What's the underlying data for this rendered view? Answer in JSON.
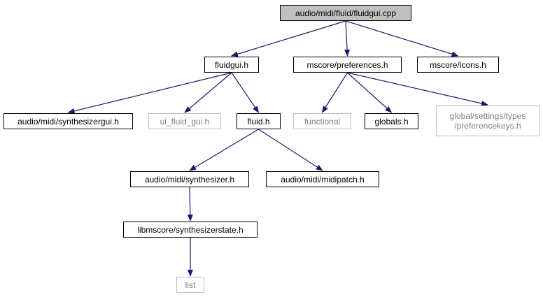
{
  "diagram": {
    "type": "include-dependency-graph",
    "colors": {
      "edge": "#191970",
      "node_border": "#000000",
      "external_border": "#bfbfbf",
      "external_text": "#7f7f7f",
      "root_fill": "#bfbfbf"
    },
    "nodes": {
      "root": {
        "label": "audio/midi/fluid/fluidgui.cpp"
      },
      "fluidgui_h": {
        "label": "fluidgui.h"
      },
      "preferences_h": {
        "label": "mscore/preferences.h"
      },
      "icons_h": {
        "label": "mscore/icons.h"
      },
      "synthesizergui_h": {
        "label": "audio/midi/synthesizergui.h"
      },
      "ui_fluid_gui_h": {
        "label": "ui_fluid_gui.h"
      },
      "fluid_h": {
        "label": "fluid.h"
      },
      "functional": {
        "label": "functional"
      },
      "globals_h": {
        "label": "globals.h"
      },
      "preferencekeys_h": {
        "label_line1": "global/settings/types",
        "label_line2": "/preferencekeys.h"
      },
      "synthesizer_h": {
        "label": "audio/midi/synthesizer.h"
      },
      "midipatch_h": {
        "label": "audio/midi/midipatch.h"
      },
      "synthesizerstate_h": {
        "label": "libmscore/synthesizerstate.h"
      },
      "list": {
        "label": "list"
      }
    },
    "edges": [
      {
        "from": "root",
        "to": "fluidgui_h"
      },
      {
        "from": "root",
        "to": "preferences_h"
      },
      {
        "from": "root",
        "to": "icons_h"
      },
      {
        "from": "fluidgui_h",
        "to": "synthesizergui_h"
      },
      {
        "from": "fluidgui_h",
        "to": "ui_fluid_gui_h"
      },
      {
        "from": "fluidgui_h",
        "to": "fluid_h"
      },
      {
        "from": "preferences_h",
        "to": "functional"
      },
      {
        "from": "preferences_h",
        "to": "globals_h"
      },
      {
        "from": "preferences_h",
        "to": "preferencekeys_h"
      },
      {
        "from": "fluid_h",
        "to": "synthesizer_h"
      },
      {
        "from": "fluid_h",
        "to": "midipatch_h"
      },
      {
        "from": "synthesizer_h",
        "to": "synthesizerstate_h"
      },
      {
        "from": "synthesizerstate_h",
        "to": "list"
      }
    ]
  }
}
